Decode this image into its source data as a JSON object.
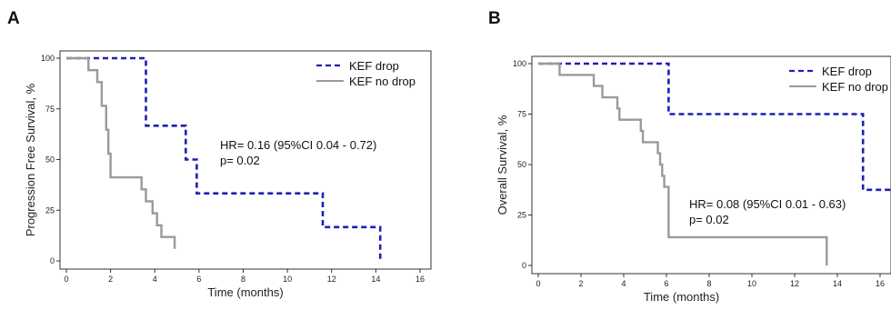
{
  "chart_data": [
    {
      "type": "line",
      "panel_label": "A",
      "xlabel": "Time (months)",
      "ylabel": "Progression Free Survival, %",
      "xlim": [
        0,
        16
      ],
      "ylim": [
        0,
        100
      ],
      "xticks": [
        0,
        2,
        4,
        6,
        8,
        10,
        12,
        14,
        16
      ],
      "yticks": [
        0,
        25,
        50,
        75,
        100
      ],
      "xtick_labels": [
        "0",
        "2",
        "4",
        "6",
        "8",
        "10",
        "12",
        "14",
        "16"
      ],
      "ytick_labels": [
        "0",
        "25",
        "50",
        "75",
        "100"
      ],
      "legend_placement": "top-right",
      "series": [
        {
          "name": "KEF drop",
          "color": "#1f1fb4",
          "style": "dashed",
          "x": [
            0,
            3.6,
            3.6,
            5.4,
            5.4,
            5.9,
            5.9,
            11.6,
            11.6,
            14.2,
            14.2
          ],
          "y": [
            100,
            100,
            66.7,
            66.7,
            50,
            50,
            33.3,
            33.3,
            16.7,
            16.7,
            0
          ]
        },
        {
          "name": "KEF no drop",
          "color": "#9a9a9a",
          "style": "solid",
          "x": [
            0,
            1.0,
            1.0,
            1.4,
            1.4,
            1.6,
            1.6,
            1.8,
            1.8,
            1.9,
            1.9,
            2.0,
            2.0,
            3.4,
            3.4,
            3.6,
            3.6,
            3.9,
            3.9,
            4.1,
            4.1,
            4.3,
            4.3,
            4.9,
            4.9
          ],
          "y": [
            100,
            100,
            94.1,
            94.1,
            88.2,
            88.2,
            76.5,
            76.5,
            64.7,
            64.7,
            52.9,
            52.9,
            41.2,
            41.2,
            35.3,
            35.3,
            29.4,
            29.4,
            23.5,
            23.5,
            17.6,
            17.6,
            11.8,
            11.8,
            5.9
          ]
        }
      ],
      "annotation_hr": "HR= 0.16 (95%CI 0.04 - 0.72)",
      "annotation_p": "p= 0.02"
    },
    {
      "type": "line",
      "panel_label": "B",
      "xlabel": "Time (months)",
      "ylabel": "Overall Survival, %",
      "xlim": [
        0,
        16
      ],
      "ylim": [
        0,
        100
      ],
      "xticks": [
        0,
        2,
        4,
        6,
        8,
        10,
        12,
        14,
        16
      ],
      "yticks": [
        0,
        25,
        50,
        75,
        100
      ],
      "xtick_labels": [
        "0",
        "2",
        "4",
        "6",
        "8",
        "10",
        "12",
        "14",
        "16"
      ],
      "ytick_labels": [
        "0",
        "25",
        "50",
        "75",
        "100"
      ],
      "legend_placement": "top-right",
      "series": [
        {
          "name": "KEF drop",
          "color": "#1f1fb4",
          "style": "dashed",
          "x": [
            0,
            6.1,
            6.1,
            15.2,
            15.2,
            17
          ],
          "y": [
            100,
            100,
            75,
            75,
            37.5,
            37.5
          ]
        },
        {
          "name": "KEF no drop",
          "color": "#9a9a9a",
          "style": "solid",
          "x": [
            0,
            1.0,
            1.0,
            2.6,
            2.6,
            3.0,
            3.0,
            3.7,
            3.7,
            3.8,
            3.8,
            4.8,
            4.8,
            4.9,
            4.9,
            5.6,
            5.6,
            5.7,
            5.7,
            5.8,
            5.8,
            5.9,
            5.9,
            6.1,
            6.1,
            13.5,
            13.5
          ],
          "y": [
            100,
            100,
            94.4,
            94.4,
            88.9,
            88.9,
            83.3,
            83.3,
            77.8,
            77.8,
            72.2,
            72.2,
            66.7,
            66.7,
            61.1,
            61.1,
            55.6,
            55.6,
            50,
            50,
            44.4,
            44.4,
            38.9,
            38.9,
            14,
            14,
            0
          ]
        }
      ],
      "annotation_hr": "HR= 0.08 (95%CI 0.01 - 0.63)",
      "annotation_p": "p= 0.02"
    }
  ]
}
